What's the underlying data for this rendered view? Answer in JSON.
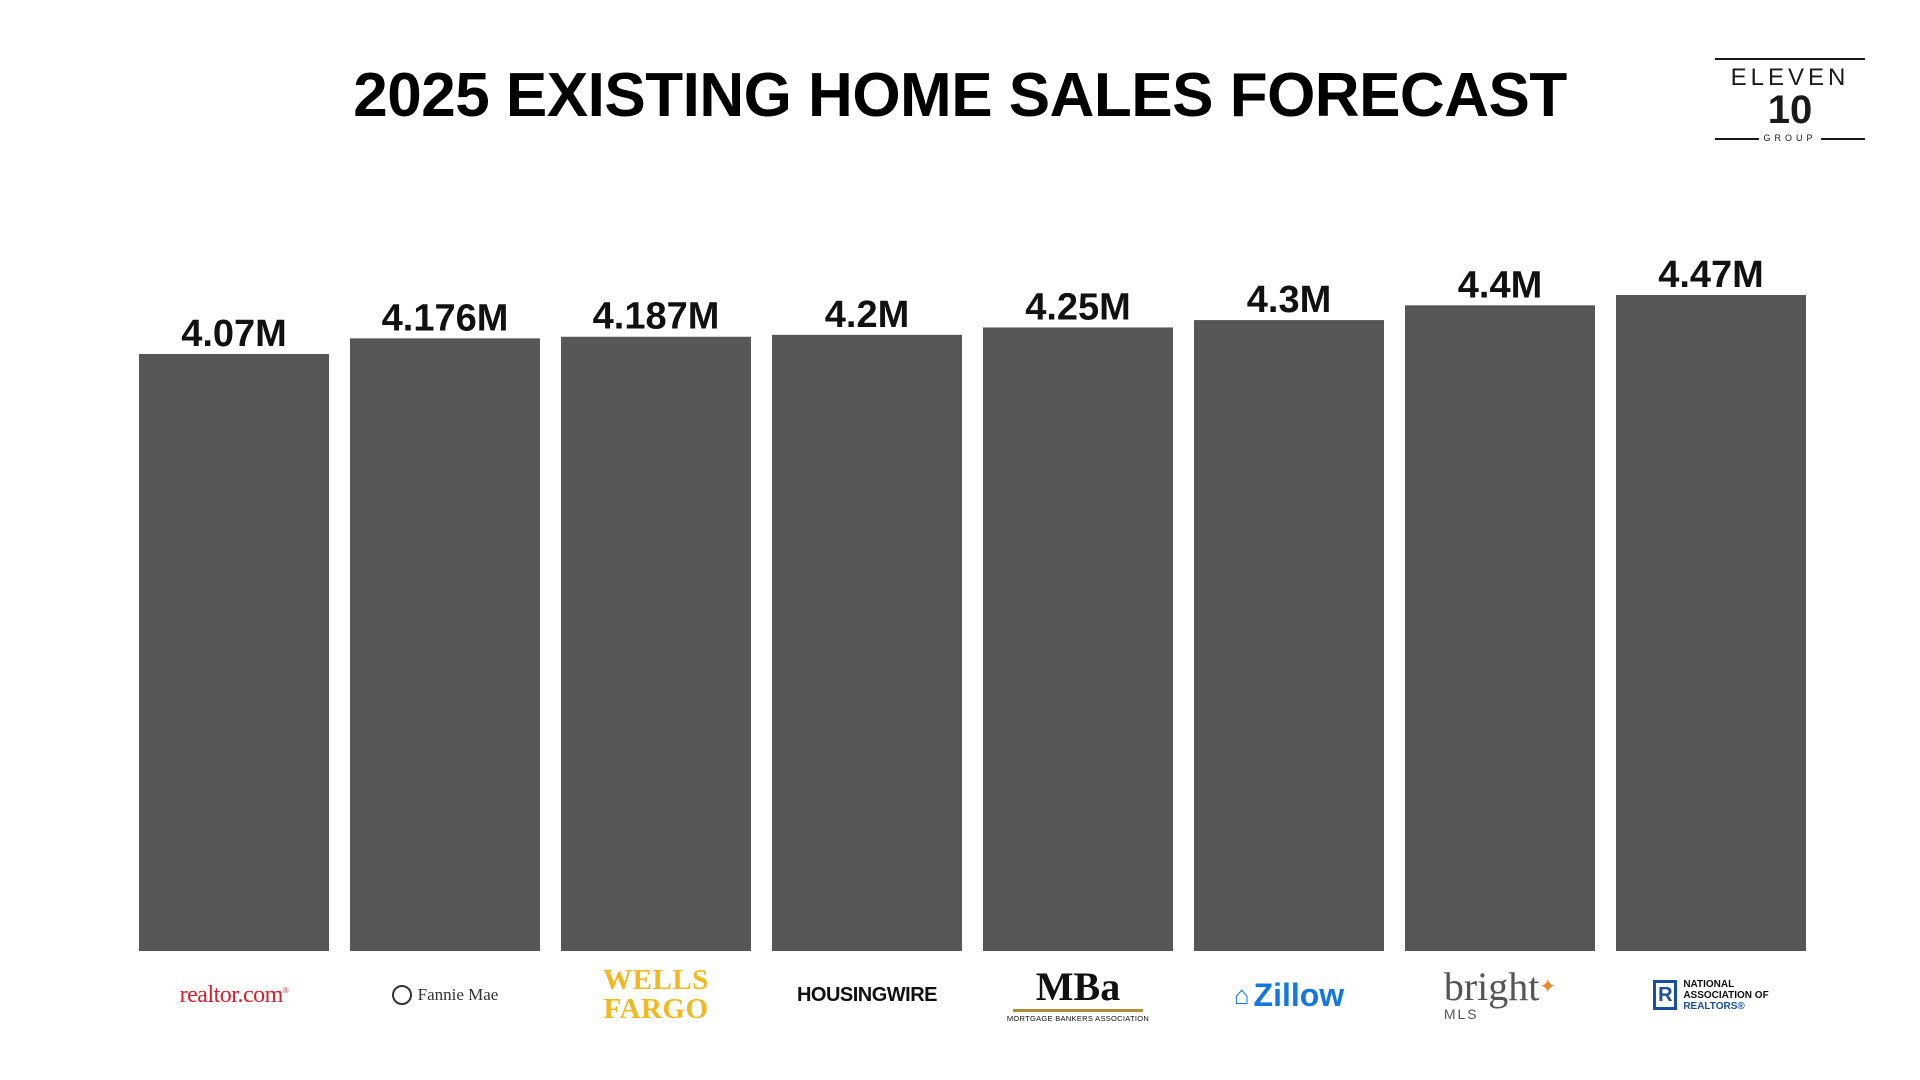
{
  "page": {
    "title": "2025 EXISTING HOME SALES FORECAST"
  },
  "logo": {
    "line1": "ELEVEN",
    "line2": "10",
    "line3": "GROUP"
  },
  "colors": {
    "bar": "#575757",
    "label": "#111111",
    "background": "#ffffff"
  },
  "chart_data": {
    "type": "bar",
    "title": "2025 EXISTING HOME SALES FORECAST",
    "xlabel": "",
    "ylabel": "",
    "categories": [
      "realtor.com",
      "Fannie Mae",
      "WELLS FARGO",
      "HOUSINGWIRE",
      "MBa MORTGAGE BANKERS ASSOCIATION",
      "Zillow",
      "bright MLS",
      "NATIONAL ASSOCIATION OF REALTORS"
    ],
    "values": [
      4.07,
      4.176,
      4.187,
      4.2,
      4.25,
      4.3,
      4.4,
      4.47
    ],
    "data_labels": [
      "4.07M",
      "4.176M",
      "4.187M",
      "4.2M",
      "4.25M",
      "4.3M",
      "4.4M",
      "4.47M"
    ],
    "unit": "M",
    "grid": false,
    "legend": "none"
  },
  "sources": {
    "realtor": {
      "text": "realtor.com",
      "mark": "®",
      "color": "#d6202a"
    },
    "fannie": {
      "text": "Fannie Mae",
      "icon": "fannie-mae-icon"
    },
    "wells": {
      "line1": "WELLS",
      "line2": "FARGO",
      "color": "#f2b81f"
    },
    "housingwire": {
      "text": "HOUSINGWIRE"
    },
    "mba": {
      "big": "MBa",
      "small": "MORTGAGE BANKERS ASSOCIATION",
      "accent": "#b08d3c"
    },
    "zillow": {
      "text": "Zillow",
      "icon": "zillow-home-icon",
      "color": "#1277e1"
    },
    "bright": {
      "word": "bright",
      "sub": "MLS",
      "accent": "#e8862a"
    },
    "nar": {
      "r": "R",
      "line1": "NATIONAL",
      "line2": "ASSOCIATION OF",
      "line3": "REALTORS®",
      "color": "#1a4f9c"
    }
  }
}
